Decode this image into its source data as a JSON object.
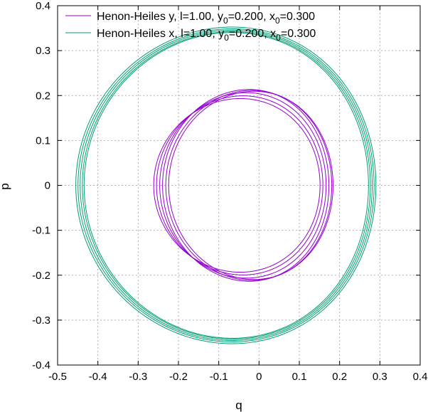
{
  "chart_data": {
    "type": "line",
    "title": "",
    "xlabel": "q",
    "ylabel": "p",
    "xlim": [
      -0.5,
      0.4
    ],
    "ylim": [
      -0.4,
      0.4
    ],
    "x_ticks": [
      "-0.5",
      "-0.4",
      "-0.3",
      "-0.2",
      "-0.1",
      "0",
      "0.1",
      "0.2",
      "0.3",
      "0.4"
    ],
    "y_ticks": [
      "-0.4",
      "-0.3",
      "-0.2",
      "-0.1",
      "0",
      "0.1",
      "0.2",
      "0.3",
      "0.4"
    ],
    "grid": true,
    "legend_position": "top-left",
    "series": [
      {
        "legend": {
          "prefix": "Henon-Heiles y, l=1.00, y",
          "sub1": "0",
          "mid": "=0.200, x",
          "sub2": "0",
          "suffix": "=0.300"
        },
        "color": "#9400d3",
        "loops": [
          {
            "x_min": -0.245,
            "x_max": 0.168,
            "y_max": 0.192
          },
          {
            "x_min": -0.238,
            "x_max": 0.175,
            "y_max": 0.198
          },
          {
            "x_min": -0.23,
            "x_max": 0.183,
            "y_max": 0.205
          },
          {
            "x_min": -0.223,
            "x_max": 0.19,
            "y_max": 0.212
          },
          {
            "x_min": -0.215,
            "x_max": 0.197,
            "y_max": 0.21
          },
          {
            "x_min": -0.208,
            "x_max": 0.2,
            "y_max": 0.208
          }
        ]
      },
      {
        "legend": {
          "prefix": "Henon-Heiles x, l=1.00, y",
          "sub1": "0",
          "mid": "=0.200, x",
          "sub2": "0",
          "suffix": "=0.300"
        },
        "color": "#009e73",
        "loops": [
          {
            "x_min": -0.425,
            "x_max": 0.32,
            "y_max": 0.35
          },
          {
            "x_min": -0.42,
            "x_max": 0.315,
            "y_max": 0.346
          },
          {
            "x_min": -0.415,
            "x_max": 0.31,
            "y_max": 0.343
          },
          {
            "x_min": -0.41,
            "x_max": 0.305,
            "y_max": 0.34
          },
          {
            "x_min": -0.406,
            "x_max": 0.3,
            "y_max": 0.338
          }
        ]
      }
    ]
  }
}
